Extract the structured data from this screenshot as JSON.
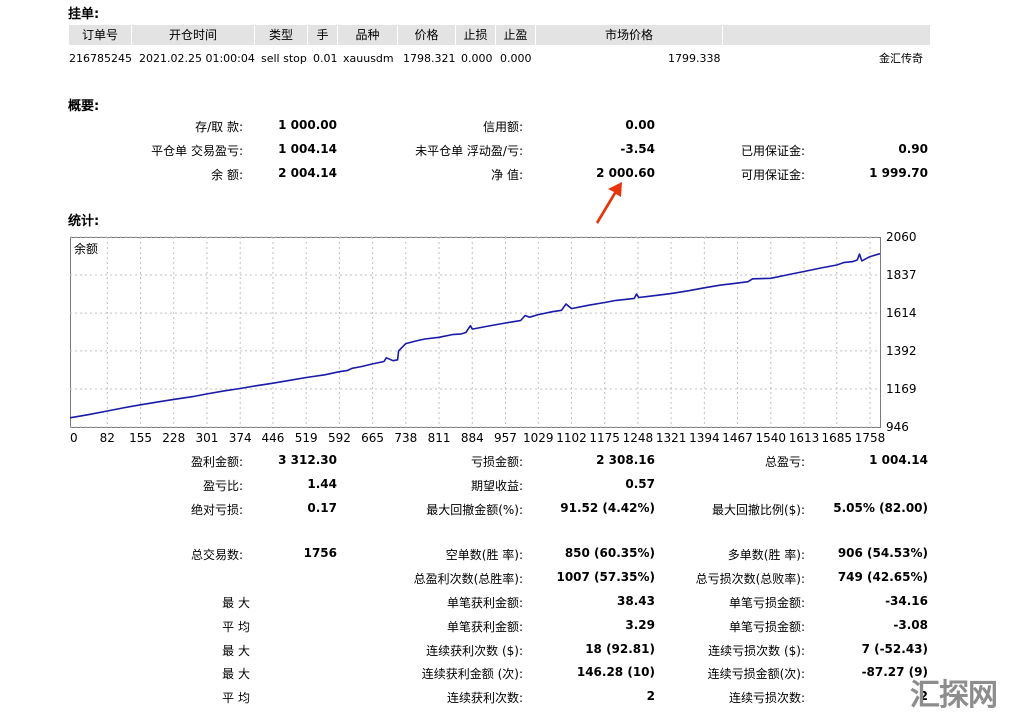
{
  "pending": {
    "title": "挂单:",
    "headers": [
      "订单号",
      "开仓时间",
      "类型",
      "手",
      "品种",
      "价格",
      "止损",
      "止盈",
      "市场价格"
    ],
    "row": {
      "ticket": "216785245",
      "time": "2021.02.25 01:00:04",
      "type": "sell stop",
      "lots": "0.01",
      "symbol": "xauusdm",
      "price": "1798.321",
      "sl": "0.000",
      "tp": "0.000",
      "market": "1799.338",
      "comment": "金汇传奇"
    }
  },
  "summary": {
    "title": "概要:",
    "deposit_label": "存/取 款:",
    "deposit": "1 000.00",
    "credit_label": "信用额:",
    "credit": "0.00",
    "closed_pl_label": "平仓单 交易盈亏:",
    "closed_pl": "1 004.14",
    "floating_label": "未平仓单 浮动盈/亏:",
    "floating": "-3.54",
    "margin_label": "已用保证金:",
    "margin": "0.90",
    "balance_label": "余 额:",
    "balance": "2 004.14",
    "equity_label": "净 值:",
    "equity": "2 000.60",
    "free_margin_label": "可用保证金:",
    "free_margin": "1 999.70"
  },
  "stats_title": "统计:",
  "chart_data": {
    "type": "line",
    "title": "余额",
    "y_ticks": [
      "2060",
      "1837",
      "1614",
      "1392",
      "1169",
      "946"
    ],
    "ylim": [
      946,
      2060
    ],
    "x_ticks": [
      "0",
      "82",
      "155",
      "228",
      "301",
      "374",
      "446",
      "519",
      "592",
      "665",
      "738",
      "811",
      "884",
      "957",
      "1029",
      "1102",
      "1175",
      "1248",
      "1321",
      "1394",
      "1467",
      "1540",
      "1613",
      "1685",
      "1758"
    ],
    "xlim": [
      0,
      1780
    ],
    "line_color": "#1a1aa8",
    "series": [
      {
        "x": [
          0,
          40,
          82,
          120,
          155,
          200,
          228,
          270,
          301,
          340,
          374,
          410,
          446,
          480,
          519,
          560,
          592,
          610,
          620,
          640,
          665,
          690,
          695,
          710,
          720,
          722,
          738,
          760,
          780,
          811,
          840,
          860,
          870,
          880,
          884,
          920,
          957,
          990,
          1000,
          1010,
          1029,
          1060,
          1080,
          1090,
          1102,
          1140,
          1175,
          1200,
          1240,
          1245,
          1250,
          1270,
          1321,
          1360,
          1394,
          1430,
          1467,
          1490,
          1500,
          1540,
          1580,
          1613,
          1650,
          1685,
          1700,
          1720,
          1730,
          1735,
          1740,
          1758,
          1780
        ],
        "y": [
          1000,
          1018,
          1040,
          1060,
          1076,
          1096,
          1108,
          1124,
          1140,
          1158,
          1172,
          1188,
          1203,
          1218,
          1236,
          1252,
          1270,
          1278,
          1290,
          1300,
          1316,
          1330,
          1352,
          1335,
          1340,
          1392,
          1435,
          1450,
          1462,
          1472,
          1488,
          1492,
          1500,
          1540,
          1520,
          1538,
          1556,
          1570,
          1600,
          1590,
          1605,
          1622,
          1630,
          1667,
          1640,
          1660,
          1676,
          1688,
          1700,
          1725,
          1705,
          1712,
          1728,
          1745,
          1762,
          1778,
          1790,
          1798,
          1815,
          1818,
          1840,
          1858,
          1878,
          1896,
          1910,
          1916,
          1925,
          1960,
          1920,
          1945,
          1962
        ]
      }
    ]
  },
  "stats": {
    "gross_profit_label": "盈利金额:",
    "gross_profit": "3 312.30",
    "gross_loss_label": "亏损金额:",
    "gross_loss": "2 308.16",
    "total_net_label": "总盈亏:",
    "total_net": "1 004.14",
    "profit_factor_label": "盈亏比:",
    "profit_factor": "1.44",
    "expected_label": "期望收益:",
    "expected": "0.57",
    "abs_dd_label": "绝对亏损:",
    "abs_dd": "0.17",
    "max_dd_label": "最大回撤金额(%):",
    "max_dd": "91.52 (4.42%)",
    "rel_dd_label": "最大回撤比例($):",
    "rel_dd": "5.05% (82.00)",
    "total_trades_label": "总交易数:",
    "total_trades": "1756",
    "short_label": "空单数(胜 率):",
    "short": "850 (60.35%)",
    "long_label": "多单数(胜 率):",
    "long": "906 (54.53%)",
    "profit_trades_label": "总盈利次数(总胜率):",
    "profit_trades": "1007 (57.35%)",
    "loss_trades_label": "总亏损次数(总败率):",
    "loss_trades": "749 (42.65%)",
    "max1_label": "最 大",
    "avg1_label": "平 均",
    "max2_label": "最 大",
    "max3_label": "最 大",
    "avg2_label": "平 均",
    "largest_profit_label": "单笔获利金额:",
    "largest_profit": "38.43",
    "largest_loss_label": "单笔亏损金额:",
    "largest_loss": "-34.16",
    "avg_profit_label": "单笔获利金额:",
    "avg_profit": "3.29",
    "avg_loss_label": "单笔亏损金额:",
    "avg_loss": "-3.08",
    "max_consec_wins_label": "连续获利次数 ($):",
    "max_consec_wins": "18 (92.81)",
    "max_consec_losses_label": "连续亏损次数 ($):",
    "max_consec_losses": "7 (-52.43)",
    "max_consec_profit_label": "连续获利金额 (次):",
    "max_consec_profit": "146.28 (10)",
    "max_consec_loss_label": "连续亏损金额(次):",
    "max_consec_loss": "-87.27 (9)",
    "avg_consec_wins_label": "连续获利次数:",
    "avg_consec_wins": "2",
    "avg_consec_losses_label": "连续亏损次数:",
    "avg_consec_losses": "2"
  },
  "watermark": "汇探网",
  "arrow_color": "#e8340c"
}
